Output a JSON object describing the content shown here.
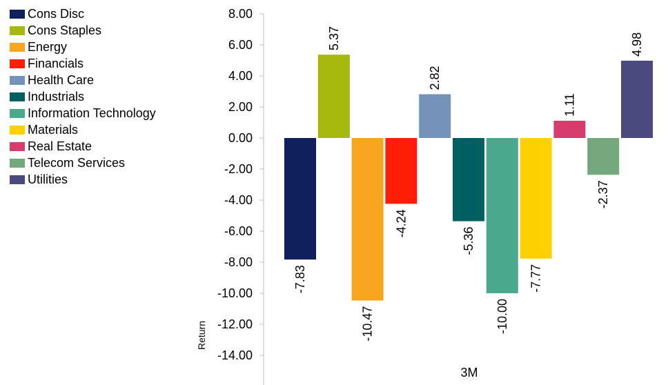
{
  "chart_data": {
    "type": "bar",
    "categories": [
      "3M"
    ],
    "ylabel": "Return",
    "ylim": [
      -14,
      8
    ],
    "ytick_step": 2,
    "ytick_labels": [
      "8.00",
      "6.00",
      "4.00",
      "2.00",
      "0.00",
      "-2.00",
      "-4.00",
      "-6.00",
      "-8.00",
      "-10.00",
      "-12.00",
      "-14.00"
    ],
    "grid": false,
    "legend_position": "left",
    "series": [
      {
        "name": "Cons Disc",
        "values": [
          -7.83
        ],
        "label": "-7.83",
        "color": "#0e1f5b"
      },
      {
        "name": "Cons Staples",
        "values": [
          5.37
        ],
        "label": "5.37",
        "color": "#a5b80c"
      },
      {
        "name": "Energy",
        "values": [
          -10.47
        ],
        "label": "-10.47",
        "color": "#f7a51f"
      },
      {
        "name": "Financials",
        "values": [
          -4.24
        ],
        "label": "-4.24",
        "color": "#fd1c05"
      },
      {
        "name": "Health Care",
        "values": [
          2.82
        ],
        "label": "2.82",
        "color": "#7593b8"
      },
      {
        "name": "Industrials",
        "values": [
          -5.36
        ],
        "label": "-5.36",
        "color": "#006060"
      },
      {
        "name": "Information Technology",
        "values": [
          -10.0
        ],
        "label": "-10.00",
        "color": "#4aa98a"
      },
      {
        "name": "Materials",
        "values": [
          -7.77
        ],
        "label": "-7.77",
        "color": "#ffd000"
      },
      {
        "name": "Real Estate",
        "values": [
          1.11
        ],
        "label": "1.11",
        "color": "#d63c6c"
      },
      {
        "name": "Telecom Services",
        "values": [
          -2.37
        ],
        "label": "-2.37",
        "color": "#72a87a"
      },
      {
        "name": "Utilities",
        "values": [
          4.98
        ],
        "label": "4.98",
        "color": "#4a4a7c"
      }
    ]
  }
}
